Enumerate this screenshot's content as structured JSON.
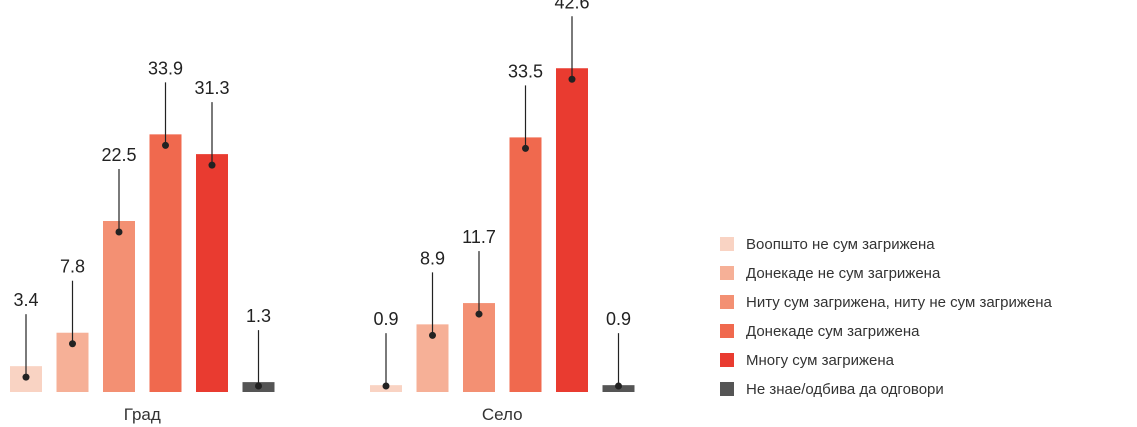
{
  "chart_data": {
    "type": "bar",
    "categories": [
      "Град",
      "Село"
    ],
    "series": [
      {
        "name": "Воопшто не сум загрижена",
        "color": "#f9d3c3",
        "values": [
          3.4,
          0.9
        ]
      },
      {
        "name": "Донекаде не сум загрижена",
        "color": "#f6b097",
        "values": [
          7.8,
          8.9
        ]
      },
      {
        "name": "Ниту сум загрижена, ниту не сум загрижена",
        "color": "#f39073",
        "values": [
          22.5,
          11.7
        ]
      },
      {
        "name": "Донекаде сум загрижена",
        "color": "#f0694e",
        "values": [
          33.9,
          33.5
        ]
      },
      {
        "name": "Многу сум загрижена",
        "color": "#e93b30",
        "values": [
          31.3,
          42.6
        ]
      },
      {
        "name": "Не знае/одбива да одговори",
        "color": "#555555",
        "values": [
          1.3,
          0.9
        ]
      }
    ],
    "legend_position": "right"
  }
}
